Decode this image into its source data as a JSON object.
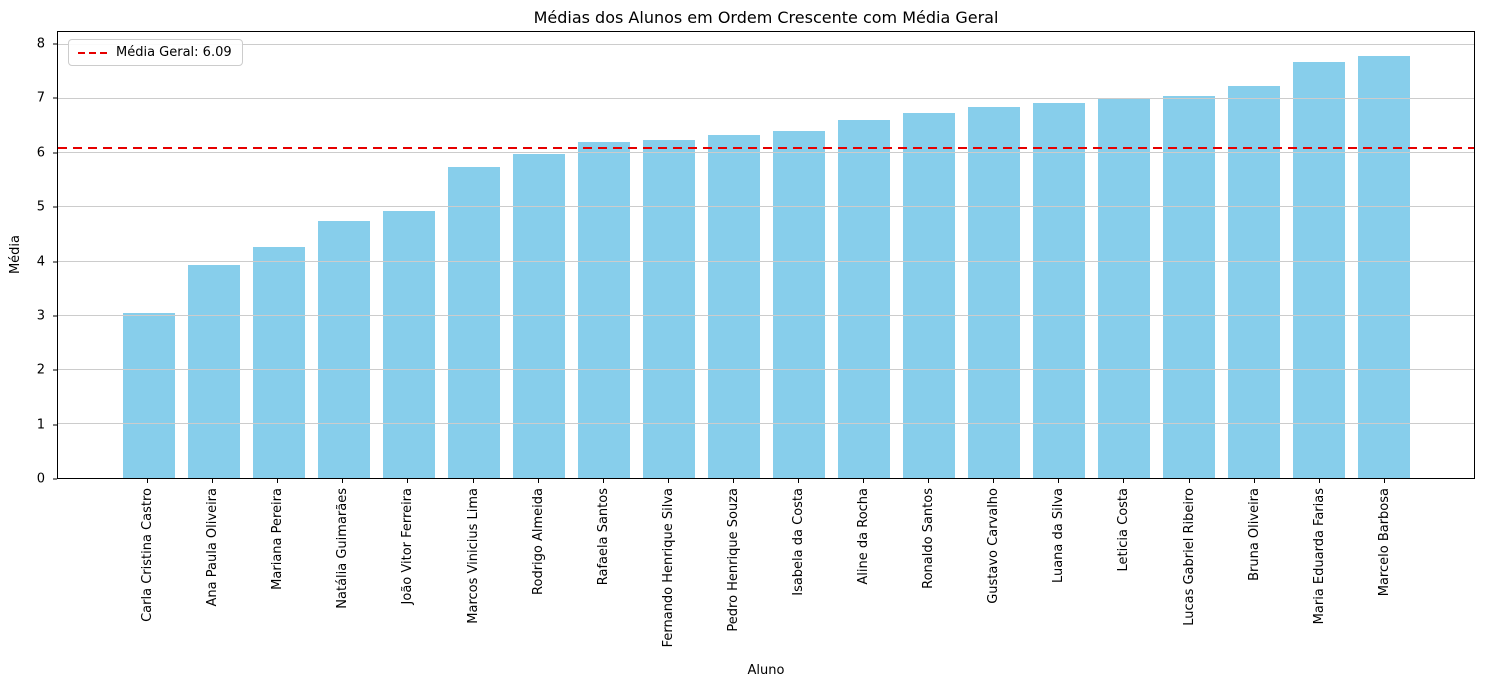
{
  "title": "Médias dos Alunos em Ordem Crescente com Média Geral",
  "legend": {
    "position": "upper left",
    "label": "Média Geral: 6.09"
  },
  "axes": {
    "xlabel": "Aluno",
    "ylabel": "Média",
    "yticks": [
      0,
      1,
      2,
      3,
      4,
      5,
      6,
      7,
      8
    ]
  },
  "colors": {
    "bar": "#87CEEB",
    "mean_line": "#e60000",
    "grid": "#cccccc",
    "spine": "#000000"
  },
  "chart_data": {
    "type": "bar",
    "title": "Médias dos Alunos em Ordem Crescente com Média Geral",
    "xlabel": "Aluno",
    "ylabel": "Média",
    "ylim": [
      0,
      8.24
    ],
    "grid": "horizontal",
    "legend_position": "upper left",
    "categories": [
      "Carla Cristina Castro",
      "Ana Paula Oliveira",
      "Mariana Pereira",
      "Natália Guimarães",
      "João Vitor Ferreira",
      "Marcos Vinicius Lima",
      "Rodrigo Almeida",
      "Rafaela Santos",
      "Fernando Henrique Silva",
      "Pedro Henrique Souza",
      "Isabela da Costa",
      "Aline da Rocha",
      "Ronaldo Santos",
      "Gustavo Carvalho",
      "Luana da Silva",
      "Leticia Costa",
      "Lucas Gabriel Ribeiro",
      "Bruna Oliveira",
      "Maria Eduarda Farias",
      "Marcelo Barbosa"
    ],
    "values": [
      3.05,
      3.93,
      4.27,
      4.75,
      4.93,
      5.74,
      5.98,
      6.2,
      6.25,
      6.33,
      6.42,
      6.61,
      6.74,
      6.86,
      6.93,
      7.03,
      7.06,
      7.25,
      7.68,
      7.8
    ],
    "mean_line": {
      "value": 6.09,
      "label": "Média Geral: 6.09",
      "style": "dashed",
      "color": "red"
    }
  }
}
